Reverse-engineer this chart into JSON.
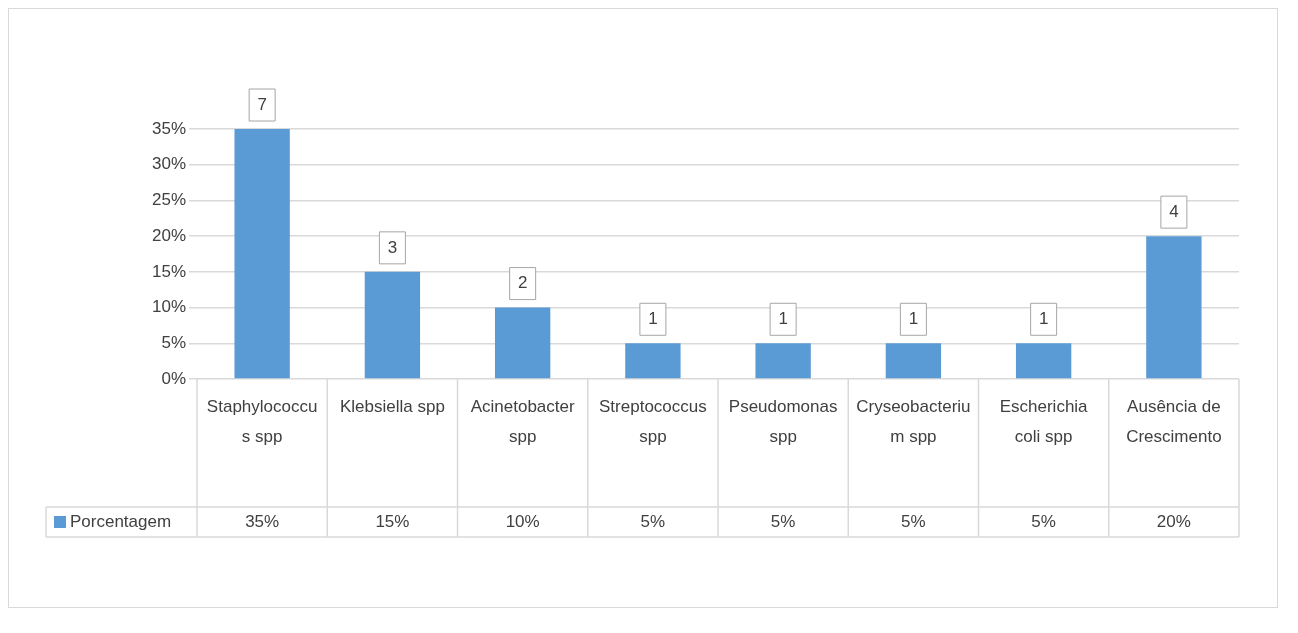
{
  "chart_data": {
    "type": "bar",
    "categories": [
      "Staphylococcus spp",
      "Klebsiella spp",
      "Acinetobacter spp",
      "Streptococcus spp",
      "Pseudomonas spp",
      "Cryseobacterium spp",
      "Escherichia coli spp",
      "Ausência de Crescimento"
    ],
    "series": [
      {
        "name": "Porcentagem",
        "color": "#5b9bd5",
        "values": [
          35,
          15,
          10,
          5,
          5,
          5,
          5,
          20
        ],
        "value_labels": [
          "35%",
          "15%",
          "10%",
          "5%",
          "5%",
          "5%",
          "5%",
          "20%"
        ]
      }
    ],
    "ylim": [
      0,
      35
    ],
    "yticks": [
      {
        "value": 0,
        "label": "0%"
      },
      {
        "value": 5,
        "label": "5%"
      },
      {
        "value": 10,
        "label": "10%"
      },
      {
        "value": 15,
        "label": "15%"
      },
      {
        "value": 20,
        "label": "20%"
      },
      {
        "value": 25,
        "label": "25%"
      },
      {
        "value": 30,
        "label": "30%"
      },
      {
        "value": 35,
        "label": "35%"
      }
    ],
    "grid": "y",
    "legend": "bottom",
    "annotations": [
      {
        "text": "7",
        "x": "Staphylococcus spp",
        "y": 35
      },
      {
        "text": "3",
        "x": "Klebsiella spp",
        "y": 15
      },
      {
        "text": "2",
        "x": "Acinetobacter spp",
        "y": 10
      },
      {
        "text": "1",
        "x": "Streptococcus spp",
        "y": 5
      },
      {
        "text": "1",
        "x": "Pseudomonas spp",
        "y": 5
      },
      {
        "text": "1",
        "x": "Cryseobacterium spp",
        "y": 5
      },
      {
        "text": "1",
        "x": "Escherichia coli spp",
        "y": 5
      },
      {
        "text": "4",
        "x": "Ausência de Crescimento",
        "y": 20
      }
    ]
  }
}
